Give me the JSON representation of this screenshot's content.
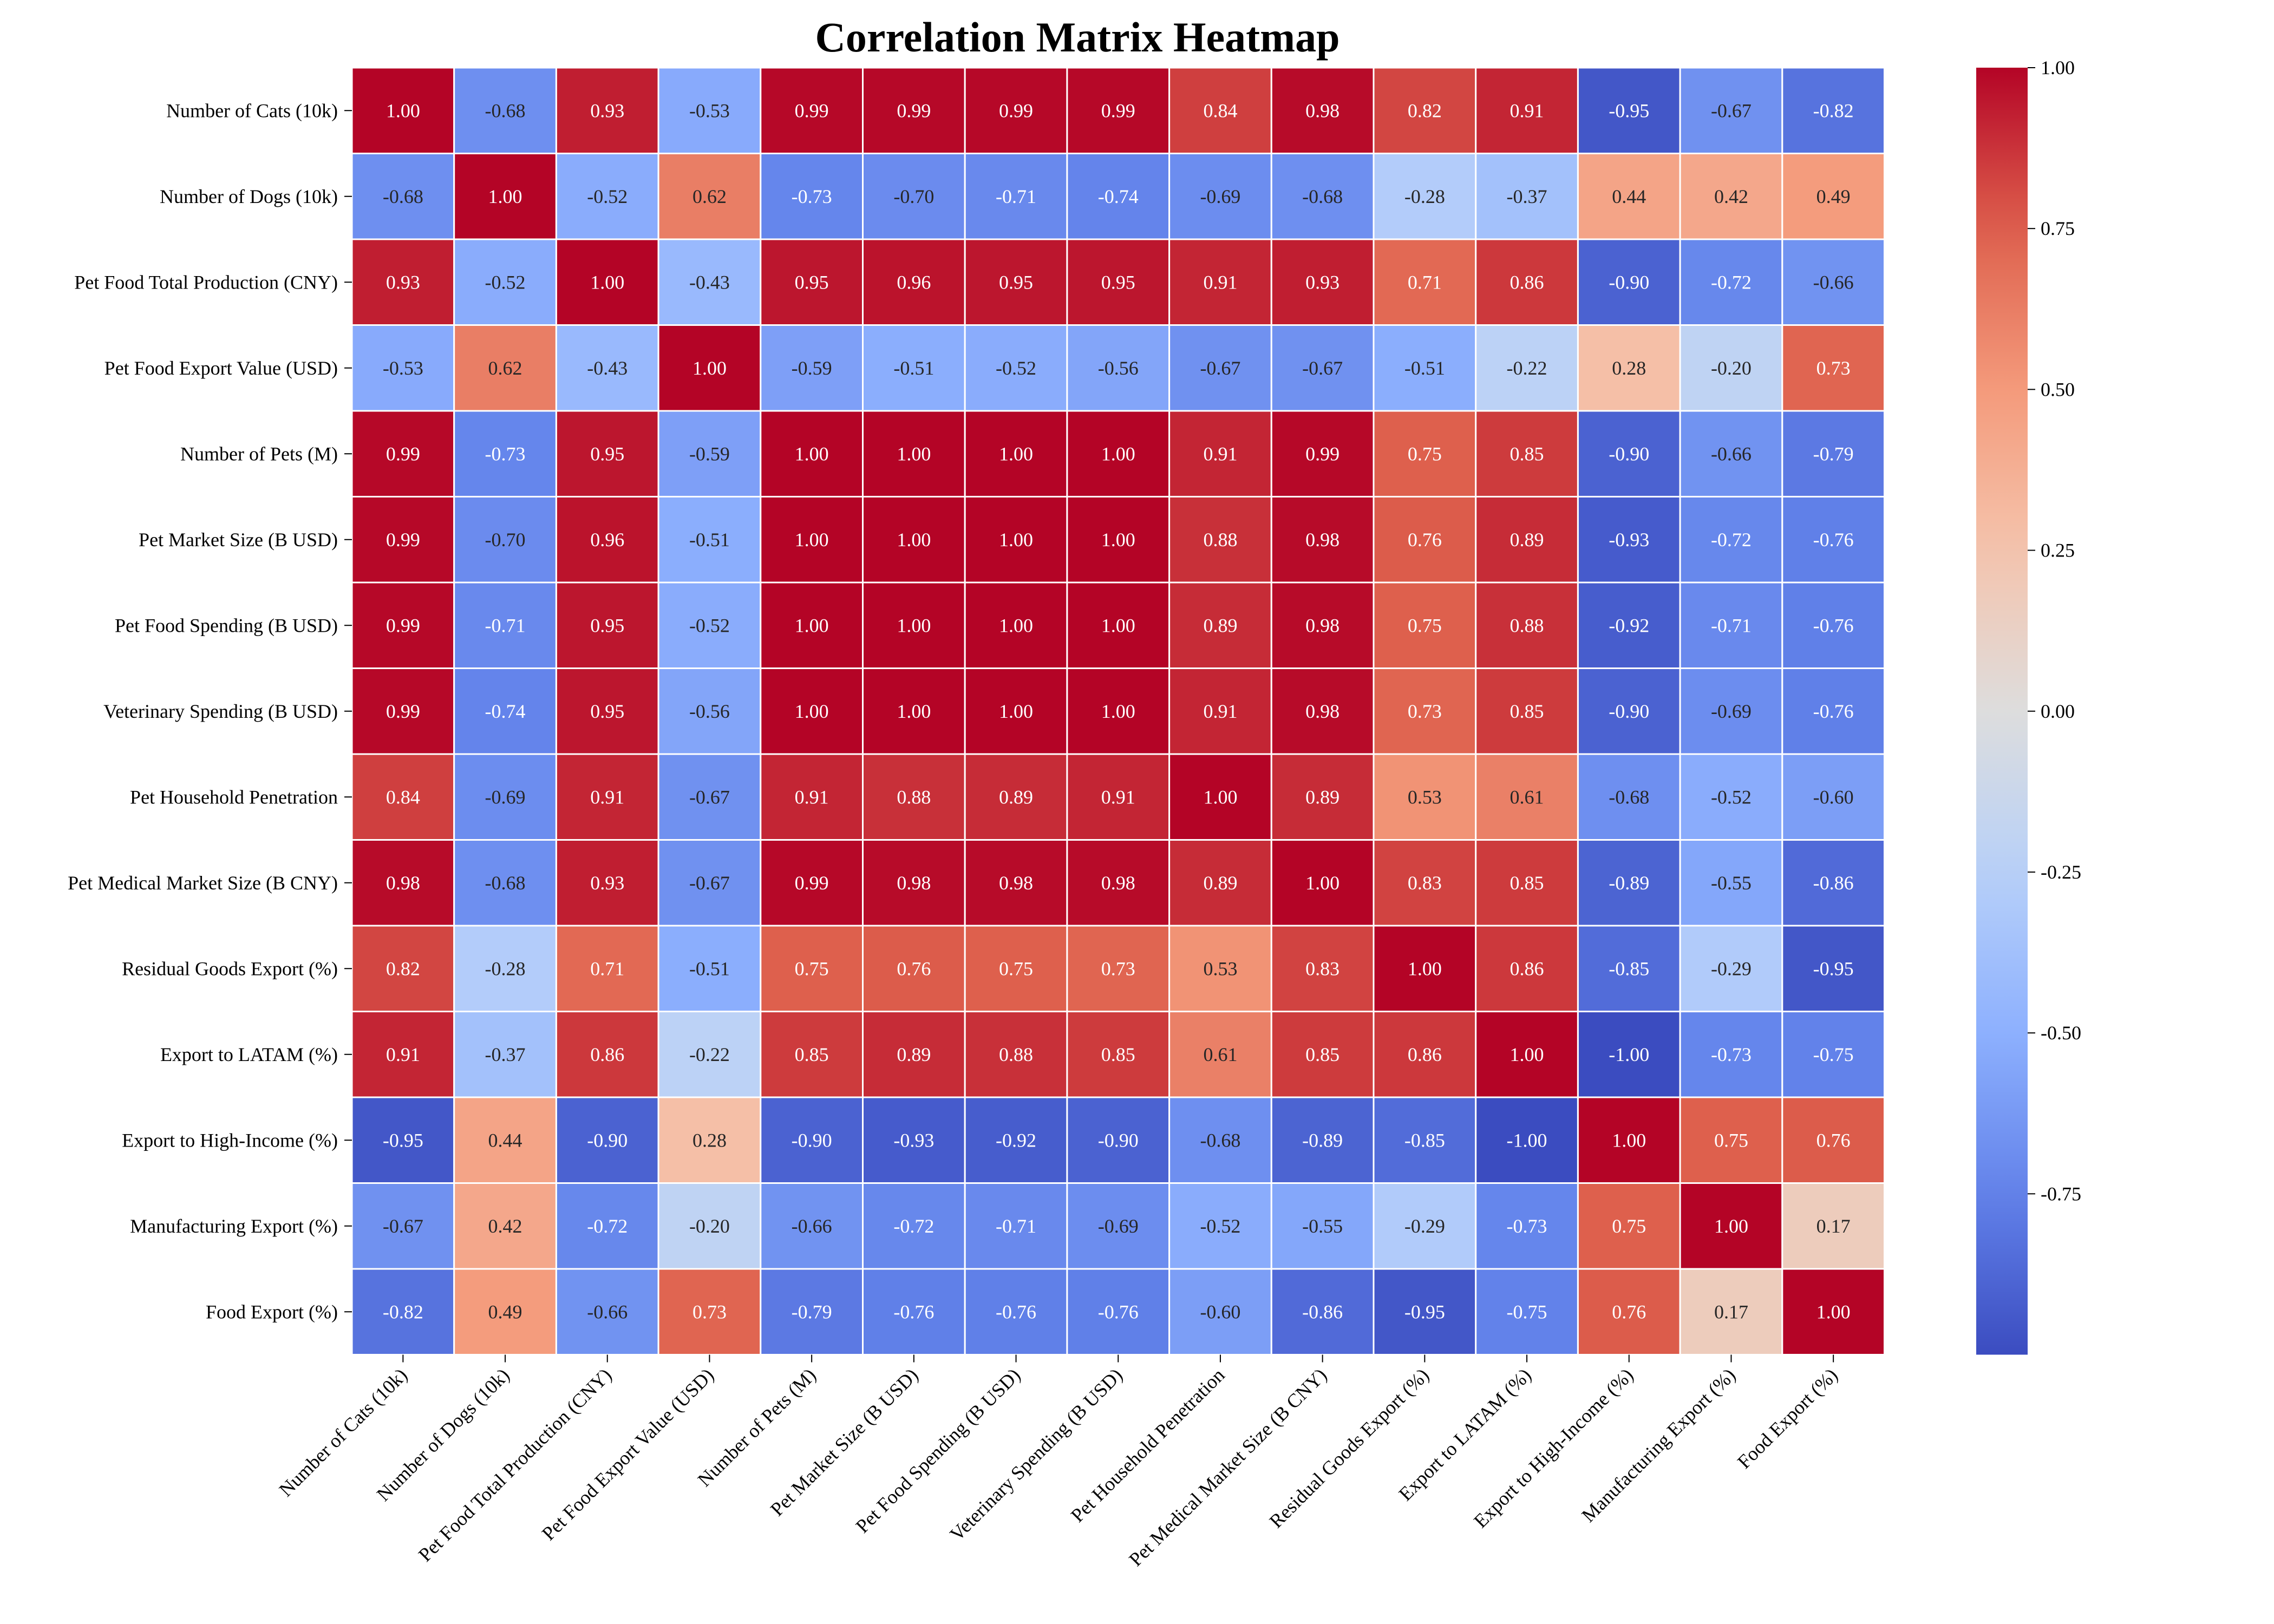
{
  "chart_data": {
    "type": "heatmap",
    "title": "Correlation Matrix Heatmap",
    "colormap": "coolwarm",
    "vmin": -1.0,
    "vmax": 1.0,
    "labels": [
      "Number of Cats (10k)",
      "Number of Dogs (10k)",
      "Pet Food Total Production (CNY)",
      "Pet Food Export Value (USD)",
      "Number of Pets (M)",
      "Pet Market Size (B USD)",
      "Pet Food Spending (B USD)",
      "Veterinary Spending (B USD)",
      "Pet Household Penetration",
      "Pet Medical Market Size (B CNY)",
      "Residual Goods Export (%)",
      "Export to LATAM (%)",
      "Export to High-Income (%)",
      "Manufacturing Export (%)",
      "Food Export (%)"
    ],
    "matrix": [
      [
        1.0,
        -0.68,
        0.93,
        -0.53,
        0.99,
        0.99,
        0.99,
        0.99,
        0.84,
        0.98,
        0.82,
        0.91,
        -0.95,
        -0.67,
        -0.82
      ],
      [
        -0.68,
        1.0,
        -0.52,
        0.62,
        -0.73,
        -0.7,
        -0.71,
        -0.74,
        -0.69,
        -0.68,
        -0.28,
        -0.37,
        0.44,
        0.42,
        0.49
      ],
      [
        0.93,
        -0.52,
        1.0,
        -0.43,
        0.95,
        0.96,
        0.95,
        0.95,
        0.91,
        0.93,
        0.71,
        0.86,
        -0.9,
        -0.72,
        -0.66
      ],
      [
        -0.53,
        0.62,
        -0.43,
        1.0,
        -0.59,
        -0.51,
        -0.52,
        -0.56,
        -0.67,
        -0.67,
        -0.51,
        -0.22,
        0.28,
        -0.2,
        0.73
      ],
      [
        0.99,
        -0.73,
        0.95,
        -0.59,
        1.0,
        1.0,
        1.0,
        1.0,
        0.91,
        0.99,
        0.75,
        0.85,
        -0.9,
        -0.66,
        -0.79
      ],
      [
        0.99,
        -0.7,
        0.96,
        -0.51,
        1.0,
        1.0,
        1.0,
        1.0,
        0.88,
        0.98,
        0.76,
        0.89,
        -0.93,
        -0.72,
        -0.76
      ],
      [
        0.99,
        -0.71,
        0.95,
        -0.52,
        1.0,
        1.0,
        1.0,
        1.0,
        0.89,
        0.98,
        0.75,
        0.88,
        -0.92,
        -0.71,
        -0.76
      ],
      [
        0.99,
        -0.74,
        0.95,
        -0.56,
        1.0,
        1.0,
        1.0,
        1.0,
        0.91,
        0.98,
        0.73,
        0.85,
        -0.9,
        -0.69,
        -0.76
      ],
      [
        0.84,
        -0.69,
        0.91,
        -0.67,
        0.91,
        0.88,
        0.89,
        0.91,
        1.0,
        0.89,
        0.53,
        0.61,
        -0.68,
        -0.52,
        -0.6
      ],
      [
        0.98,
        -0.68,
        0.93,
        -0.67,
        0.99,
        0.98,
        0.98,
        0.98,
        0.89,
        1.0,
        0.83,
        0.85,
        -0.89,
        -0.55,
        -0.86
      ],
      [
        0.82,
        -0.28,
        0.71,
        -0.51,
        0.75,
        0.76,
        0.75,
        0.73,
        0.53,
        0.83,
        1.0,
        0.86,
        -0.85,
        -0.29,
        -0.95
      ],
      [
        0.91,
        -0.37,
        0.86,
        -0.22,
        0.85,
        0.89,
        0.88,
        0.85,
        0.61,
        0.85,
        0.86,
        1.0,
        -1.0,
        -0.73,
        -0.75
      ],
      [
        -0.95,
        0.44,
        -0.9,
        0.28,
        -0.9,
        -0.93,
        -0.92,
        -0.9,
        -0.68,
        -0.89,
        -0.85,
        -1.0,
        1.0,
        0.75,
        0.76
      ],
      [
        -0.67,
        0.42,
        -0.72,
        -0.2,
        -0.66,
        -0.72,
        -0.71,
        -0.69,
        -0.52,
        -0.55,
        -0.29,
        -0.73,
        0.75,
        1.0,
        0.17
      ],
      [
        -0.82,
        0.49,
        -0.66,
        0.73,
        -0.79,
        -0.76,
        -0.76,
        -0.76,
        -0.6,
        -0.86,
        -0.95,
        -0.75,
        0.76,
        0.17,
        1.0
      ]
    ],
    "colorbar_ticks": [
      1.0,
      0.75,
      0.5,
      0.25,
      0.0,
      -0.25,
      -0.5,
      -0.75
    ],
    "colorbar_tick_labels": [
      "1.00",
      "0.75",
      "0.50",
      "0.25",
      "0.00",
      "-0.25",
      "-0.50",
      "-0.75"
    ],
    "annotations": "values shown in each cell with 2 decimals",
    "xlabel": "",
    "ylabel": ""
  }
}
